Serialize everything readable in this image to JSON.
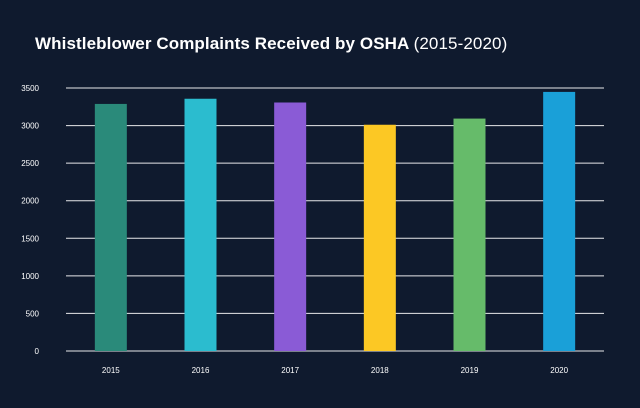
{
  "chart_data": {
    "type": "bar",
    "title": "Whistleblower Complaints Received by OSHA",
    "title_suffix": "(2015-2020)",
    "categories": [
      "2015",
      "2016",
      "2017",
      "2018",
      "2019",
      "2020"
    ],
    "values": [
      3288,
      3357,
      3307,
      3011,
      3093,
      3448
    ],
    "colors": [
      "#2a8a7a",
      "#2bbccf",
      "#8a5bd6",
      "#fcc824",
      "#66bb6a",
      "#1aa0d8"
    ],
    "ylim": [
      0,
      3500
    ],
    "yticks": [
      0,
      500,
      1000,
      1500,
      2000,
      2500,
      3000,
      3500
    ],
    "xlabel": "",
    "ylabel": "",
    "grid": true,
    "legend": "none",
    "background": "#0f1a2e",
    "text_color": "#ffffff"
  }
}
